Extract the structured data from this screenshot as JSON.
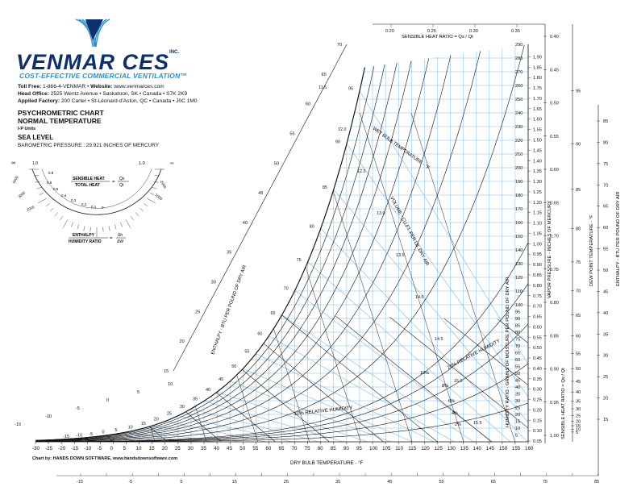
{
  "header": {
    "logo_text": "VENMAR CES",
    "logo_suffix": "INC.",
    "tagline": "COST-EFFECTIVE COMMERCIAL VENTILATION",
    "tagline_mark": "™",
    "toll_free_label": "Toll Free:",
    "toll_free": "1-866-4-VENMAR",
    "website_label": "Website:",
    "website": "www.venmarces.com",
    "head_office_label": "Head Office:",
    "head_office": "2525 Wentz Avenue • Saskatoon, SK • Canada • S7K 2K9",
    "factory_label": "Applied Factory:",
    "factory": "200 Carter • St-Léonard-d'Aston, QC • Canada • J0C 1M0",
    "chart_title": "PSYCHROMETRIC CHART",
    "chart_subtitle": "NORMAL TEMPERATURE",
    "units": "I-P Units",
    "elevation": "SEA LEVEL",
    "pressure_label": "BAROMETRIC PRESSURE",
    "pressure_value": "29.921 INCHES OF MERCURY"
  },
  "credit": "Chart by: HANDS DOWN SOFTWARE, www.handsdownsoftware.com",
  "colors": {
    "brand_navy": "#0e2f6b",
    "brand_blue": "#2a8fcf",
    "chart_blue": "#7fb8e0",
    "ink": "#111111"
  },
  "protractor": {
    "formula_top_num": "SENSIBLE HEAT",
    "formula_top_den": "TOTAL HEAT",
    "formula_top_rhs_num": "Qs",
    "formula_top_rhs_den": "Qt",
    "formula_bot_num": "ENTHALPY",
    "formula_bot_den": "HUMIDITY RATIO",
    "formula_bot_rhs_num": "Δh",
    "formula_bot_rhs_den": "ΔW",
    "scale_labels": [
      "1.0",
      "0.8",
      "0.6",
      "0.5",
      "0.4",
      "0.3",
      "0.2",
      "0.1",
      "0"
    ],
    "left_infinity": "∞",
    "right_labels": [
      "1.0",
      "-∞"
    ],
    "outer_labels": [
      "5000",
      "3000",
      "2000",
      "1000",
      "-2000"
    ]
  },
  "chart_data": {
    "type": "psychrometric",
    "title": "PSYCHROMETRIC CHART",
    "subtitle": "NORMAL TEMPERATURE",
    "xlabel": "DRY BULB TEMPERATURE - °F",
    "x_ticks": [
      -30,
      -25,
      -20,
      -15,
      -10,
      -5,
      0,
      5,
      10,
      15,
      20,
      25,
      30,
      35,
      40,
      45,
      50,
      55,
      60,
      65,
      70,
      75,
      80,
      85,
      90,
      95,
      100,
      105,
      110,
      115,
      120,
      125,
      130,
      135,
      140,
      145,
      150,
      155,
      160
    ],
    "xlim": [
      -30,
      160
    ],
    "ylabel_right": "HUMIDITY RATIO - GRAINS OF MOISTURE PER POUND OF DRY AIR",
    "y_ticks_grains": [
      5,
      10,
      15,
      20,
      25,
      30,
      35,
      40,
      45,
      50,
      55,
      60,
      65,
      70,
      75,
      80,
      85,
      90,
      95,
      100,
      105,
      110,
      115,
      120,
      125,
      130,
      135,
      140,
      145,
      150,
      155,
      160,
      165,
      170,
      175,
      180,
      185,
      190,
      195,
      200,
      205,
      210,
      215,
      220,
      225,
      230,
      235,
      240,
      245,
      250,
      255,
      260,
      265,
      270,
      275,
      280,
      285,
      290
    ],
    "ylim_grains": [
      0,
      290
    ],
    "vapor_pressure_label": "VAPOR PRESSURE - INCHES OF MERCURY",
    "vapor_pressure_ticks": [
      "0.05",
      "0.10",
      "0.15",
      "0.20",
      "0.25",
      "0.30",
      "0.35",
      "0.40",
      "0.45",
      "0.50",
      "0.55",
      "0.60",
      "0.65",
      "0.70",
      "0.75",
      "0.80",
      "0.85",
      "0.90",
      "0.95",
      "1.00",
      "1.05",
      "1.10",
      "1.15",
      "1.20",
      "1.25",
      "1.30",
      "1.35",
      "1.40",
      "1.45",
      "1.50",
      "1.55",
      "1.60",
      "1.65",
      "1.70",
      "1.75",
      "1.80",
      "1.85",
      "1.90"
    ],
    "dew_point_label": "DEW POINT TEMPERATURE - °F",
    "dew_point_ticks": [
      5,
      10,
      15,
      20,
      25,
      30,
      35,
      40,
      45,
      50,
      55,
      60,
      65,
      70,
      75,
      80,
      85,
      90,
      95
    ],
    "shr_label": "SENSIBLE HEAT RATIO = Qs / Qt",
    "shr_top_ticks": [
      "0.20",
      "0.25",
      "0.30",
      "0.35"
    ],
    "shr_right_ticks": [
      "0.40",
      "0.45",
      "0.50",
      "0.55",
      "0.60",
      "0.65",
      "0.70",
      "0.75",
      "0.80",
      "0.85",
      "0.90",
      "0.95",
      "1.00"
    ],
    "enthalpy_label": "ENTHALPY - BTU PER POUND OF DRY AIR",
    "enthalpy_diag_ticks": [
      15,
      20,
      25,
      30,
      35,
      40,
      45,
      50,
      55,
      60,
      65,
      70
    ],
    "enthalpy_low_ticks": [
      -15,
      -10,
      -5,
      0,
      5,
      10
    ],
    "enthalpy_right_ticks": [
      15,
      20,
      25,
      30,
      35,
      40,
      45,
      50,
      55,
      60,
      65,
      70,
      75,
      80,
      85
    ],
    "enthalpy_bottom_ticks": [
      -15,
      -10,
      -5,
      0,
      5,
      10,
      15,
      20,
      25,
      30,
      35,
      40,
      45,
      50,
      55,
      60,
      65,
      70,
      75,
      80,
      85
    ],
    "wet_bulb_label": "WET BULB TEMPERATURE - °F",
    "wet_bulb_ticks": [
      -15,
      -10,
      -5,
      0,
      5,
      10,
      15,
      20,
      25,
      30,
      35,
      40,
      45,
      50,
      55,
      60,
      65,
      70,
      75,
      80,
      85,
      90,
      95
    ],
    "volume_label": "VOLUME - CU.FT. PER LB. DRY AIR",
    "volume_ticks": [
      "11.5",
      "12.0",
      "12.5",
      "13.0",
      "13.5",
      "14.0",
      "14.5",
      "15.0",
      "15.5"
    ],
    "rh_label": "RELATIVE HUMIDITY",
    "rh_curves_percent": [
      2,
      4,
      6,
      8,
      10,
      20,
      30,
      40,
      50,
      60,
      70,
      80,
      90,
      100
    ],
    "rh_labels": [
      "10% RELATIVE HUMIDITY",
      "20% RELATIVE HUMIDITY",
      "10%",
      "8%",
      "6%",
      "4%",
      "2%"
    ],
    "grid": true
  }
}
